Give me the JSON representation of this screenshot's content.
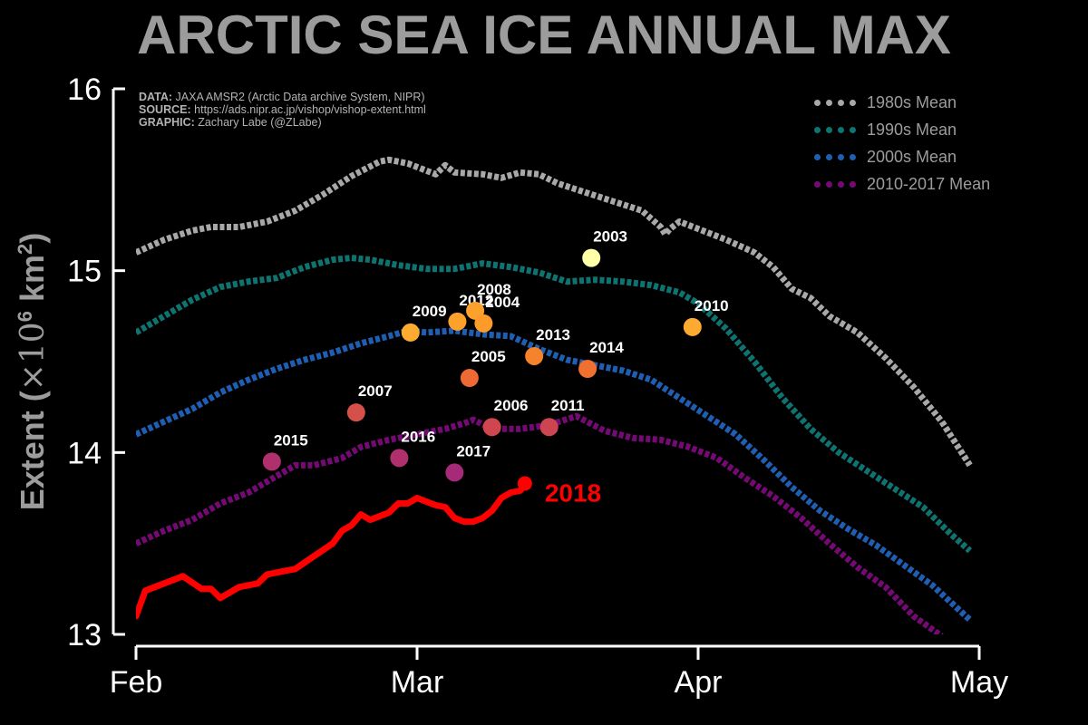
{
  "title": "ARCTIC SEA ICE ANNUAL MAX",
  "credits": {
    "data_label": "DATA:",
    "data_text": "JAXA AMSR2 (Arctic Data archive System, NIPR)",
    "source_label": "SOURCE:",
    "source_text": "https://ads.nipr.ac.jp/vishop/vishop-extent.html",
    "graphic_label": "GRAPHIC:",
    "graphic_text": "Zachary Labe (@ZLabe)"
  },
  "ylabel_text": "Extent (",
  "ylabel_unit": "×10",
  "ylabel_exp": "6",
  "ylabel_tail": " km",
  "ylabel_sq": "2",
  "ylabel_close": ")",
  "chart_data": {
    "type": "line",
    "title": "ARCTIC SEA ICE ANNUAL MAX",
    "xlabel": "",
    "ylabel": "Extent (×10^6 km^2)",
    "x_unit": "day index (0 = Feb 1)",
    "xlim": [
      0,
      89
    ],
    "ylim": [
      13,
      16
    ],
    "x_ticks": [
      {
        "value": 0,
        "label": "Feb"
      },
      {
        "value": 30,
        "label": "Mar"
      },
      {
        "value": 60,
        "label": "Apr"
      },
      {
        "value": 90,
        "label": "May"
      }
    ],
    "y_ticks": [
      {
        "value": 13,
        "label": "13"
      },
      {
        "value": 14,
        "label": "14"
      },
      {
        "value": 15,
        "label": "15"
      },
      {
        "value": 16,
        "label": "16"
      }
    ],
    "series": [
      {
        "name": "1980s Mean",
        "color": "#a8a8a8",
        "style": "dotted",
        "keyframes": [
          [
            0,
            15.1
          ],
          [
            3,
            15.17
          ],
          [
            6,
            15.22
          ],
          [
            8,
            15.24
          ],
          [
            11,
            15.24
          ],
          [
            14,
            15.27
          ],
          [
            17,
            15.33
          ],
          [
            20,
            15.42
          ],
          [
            23,
            15.52
          ],
          [
            26,
            15.6
          ],
          [
            27,
            15.61
          ],
          [
            29,
            15.59
          ],
          [
            31,
            15.55
          ],
          [
            32,
            15.53
          ],
          [
            33,
            15.58
          ],
          [
            34,
            15.54
          ],
          [
            37,
            15.53
          ],
          [
            39,
            15.51
          ],
          [
            41,
            15.54
          ],
          [
            43,
            15.53
          ],
          [
            45,
            15.48
          ],
          [
            48,
            15.43
          ],
          [
            51,
            15.38
          ],
          [
            54,
            15.33
          ],
          [
            56,
            15.24
          ],
          [
            56.5,
            15.2
          ],
          [
            57,
            15.23
          ],
          [
            58,
            15.27
          ],
          [
            60,
            15.23
          ],
          [
            63,
            15.17
          ],
          [
            66,
            15.1
          ],
          [
            68,
            15.02
          ],
          [
            70,
            14.9
          ],
          [
            72,
            14.85
          ],
          [
            74,
            14.75
          ],
          [
            77,
            14.66
          ],
          [
            80,
            14.52
          ],
          [
            83,
            14.36
          ],
          [
            86,
            14.17
          ],
          [
            89,
            13.93
          ]
        ]
      },
      {
        "name": "1990s Mean",
        "color": "#0e7472",
        "style": "dotted",
        "keyframes": [
          [
            0,
            14.66
          ],
          [
            3,
            14.75
          ],
          [
            6,
            14.84
          ],
          [
            9,
            14.91
          ],
          [
            12,
            14.94
          ],
          [
            15,
            14.96
          ],
          [
            18,
            15.02
          ],
          [
            21,
            15.06
          ],
          [
            23,
            15.07
          ],
          [
            25,
            15.06
          ],
          [
            28,
            15.03
          ],
          [
            31,
            15.01
          ],
          [
            34,
            15.01
          ],
          [
            37,
            15.04
          ],
          [
            40,
            15.02
          ],
          [
            43,
            14.99
          ],
          [
            46,
            14.94
          ],
          [
            49,
            14.95
          ],
          [
            52,
            14.94
          ],
          [
            55,
            14.92
          ],
          [
            58,
            14.88
          ],
          [
            60,
            14.82
          ],
          [
            63,
            14.68
          ],
          [
            66,
            14.5
          ],
          [
            69,
            14.3
          ],
          [
            72,
            14.13
          ],
          [
            75,
            14
          ],
          [
            78,
            13.9
          ],
          [
            81,
            13.8
          ],
          [
            84,
            13.7
          ],
          [
            87,
            13.55
          ],
          [
            89,
            13.46
          ]
        ]
      },
      {
        "name": "2000s Mean",
        "color": "#1f5fb3",
        "style": "dotted",
        "keyframes": [
          [
            0,
            14.1
          ],
          [
            3,
            14.17
          ],
          [
            6,
            14.24
          ],
          [
            9,
            14.33
          ],
          [
            12,
            14.4
          ],
          [
            15,
            14.46
          ],
          [
            18,
            14.51
          ],
          [
            21,
            14.55
          ],
          [
            24,
            14.6
          ],
          [
            27,
            14.64
          ],
          [
            29,
            14.67
          ],
          [
            31,
            14.66
          ],
          [
            34,
            14.67
          ],
          [
            37,
            14.65
          ],
          [
            40,
            14.64
          ],
          [
            43,
            14.57
          ],
          [
            46,
            14.51
          ],
          [
            49,
            14.48
          ],
          [
            52,
            14.45
          ],
          [
            55,
            14.4
          ],
          [
            58,
            14.3
          ],
          [
            61,
            14.2
          ],
          [
            64,
            14.1
          ],
          [
            67,
            13.96
          ],
          [
            70,
            13.81
          ],
          [
            73,
            13.68
          ],
          [
            76,
            13.58
          ],
          [
            79,
            13.49
          ],
          [
            82,
            13.38
          ],
          [
            85,
            13.27
          ],
          [
            89,
            13.08
          ]
        ]
      },
      {
        "name": "2010-2017 Mean",
        "color": "#750a75",
        "style": "dotted",
        "keyframes": [
          [
            0,
            13.5
          ],
          [
            3,
            13.57
          ],
          [
            6,
            13.63
          ],
          [
            9,
            13.72
          ],
          [
            12,
            13.78
          ],
          [
            15,
            13.87
          ],
          [
            17,
            13.93
          ],
          [
            19,
            13.93
          ],
          [
            22,
            13.97
          ],
          [
            24,
            14.03
          ],
          [
            27,
            14.07
          ],
          [
            30,
            14.1
          ],
          [
            33,
            14.13
          ],
          [
            35,
            14.16
          ],
          [
            36,
            14.18
          ],
          [
            38,
            14.13
          ],
          [
            41,
            14.13
          ],
          [
            44,
            14.15
          ],
          [
            47,
            14.2
          ],
          [
            50,
            14.12
          ],
          [
            53,
            14.08
          ],
          [
            56,
            14.07
          ],
          [
            59,
            14.03
          ],
          [
            62,
            13.97
          ],
          [
            65,
            13.86
          ],
          [
            68,
            13.76
          ],
          [
            71,
            13.64
          ],
          [
            74,
            13.5
          ],
          [
            77,
            13.37
          ],
          [
            80,
            13.26
          ],
          [
            83,
            13.1
          ],
          [
            86,
            12.99
          ]
        ]
      },
      {
        "name": "2018",
        "color": "#ff0000",
        "style": "solid",
        "keyframes": [
          [
            0,
            13.1
          ],
          [
            1,
            13.24
          ],
          [
            3,
            13.28
          ],
          [
            5,
            13.32
          ],
          [
            7,
            13.25
          ],
          [
            8,
            13.25
          ],
          [
            9,
            13.2
          ],
          [
            11,
            13.26
          ],
          [
            13,
            13.28
          ],
          [
            14,
            13.33
          ],
          [
            16,
            13.35
          ],
          [
            17,
            13.36
          ],
          [
            19,
            13.43
          ],
          [
            21,
            13.5
          ],
          [
            22,
            13.57
          ],
          [
            23,
            13.6
          ],
          [
            24,
            13.66
          ],
          [
            25,
            13.63
          ],
          [
            26,
            13.65
          ],
          [
            27,
            13.67
          ],
          [
            28,
            13.72
          ],
          [
            29,
            13.72
          ],
          [
            30,
            13.75
          ],
          [
            31,
            13.73
          ],
          [
            32,
            13.71
          ],
          [
            33,
            13.7
          ],
          [
            34,
            13.64
          ],
          [
            35,
            13.62
          ],
          [
            36,
            13.62
          ],
          [
            37,
            13.64
          ],
          [
            38,
            13.68
          ],
          [
            39,
            13.75
          ],
          [
            40,
            13.78
          ],
          [
            41,
            13.79
          ],
          [
            41.5,
            13.82
          ]
        ]
      }
    ],
    "endpoint_label": {
      "text": "2018",
      "x": 41.5,
      "y": 13.83,
      "color": "#ff0000"
    },
    "points": [
      {
        "year": "2003",
        "x": 48.6,
        "y": 15.07,
        "color": "#ffffa8"
      },
      {
        "year": "2010",
        "x": 59.4,
        "y": 14.69,
        "color": "#fdaa30"
      },
      {
        "year": "2009",
        "x": 29.3,
        "y": 14.66,
        "color": "#fdaa30"
      },
      {
        "year": "2012",
        "x": 34.3,
        "y": 14.72,
        "color": "#fca22c"
      },
      {
        "year": "2008",
        "x": 36.2,
        "y": 14.78,
        "color": "#fca22c"
      },
      {
        "year": "2004",
        "x": 37.1,
        "y": 14.71,
        "color": "#fc9a2a"
      },
      {
        "year": "2013",
        "x": 42.5,
        "y": 14.53,
        "color": "#f5832b"
      },
      {
        "year": "2014",
        "x": 48.2,
        "y": 14.46,
        "color": "#f07030"
      },
      {
        "year": "2005",
        "x": 35.6,
        "y": 14.41,
        "color": "#ed6a34"
      },
      {
        "year": "2007",
        "x": 23.5,
        "y": 14.22,
        "color": "#d6504a"
      },
      {
        "year": "2006",
        "x": 38.0,
        "y": 14.14,
        "color": "#d04650"
      },
      {
        "year": "2011",
        "x": 44.1,
        "y": 14.14,
        "color": "#ce4552"
      },
      {
        "year": "2015",
        "x": 14.5,
        "y": 13.95,
        "color": "#b0306e"
      },
      {
        "year": "2016",
        "x": 28.1,
        "y": 13.97,
        "color": "#b0306e"
      },
      {
        "year": "2017",
        "x": 34.0,
        "y": 13.89,
        "color": "#a52a77"
      }
    ],
    "legend": {
      "placement": "top-right",
      "entries": [
        "1980s Mean",
        "1990s Mean",
        "2000s Mean",
        "2010-2017 Mean"
      ]
    }
  }
}
